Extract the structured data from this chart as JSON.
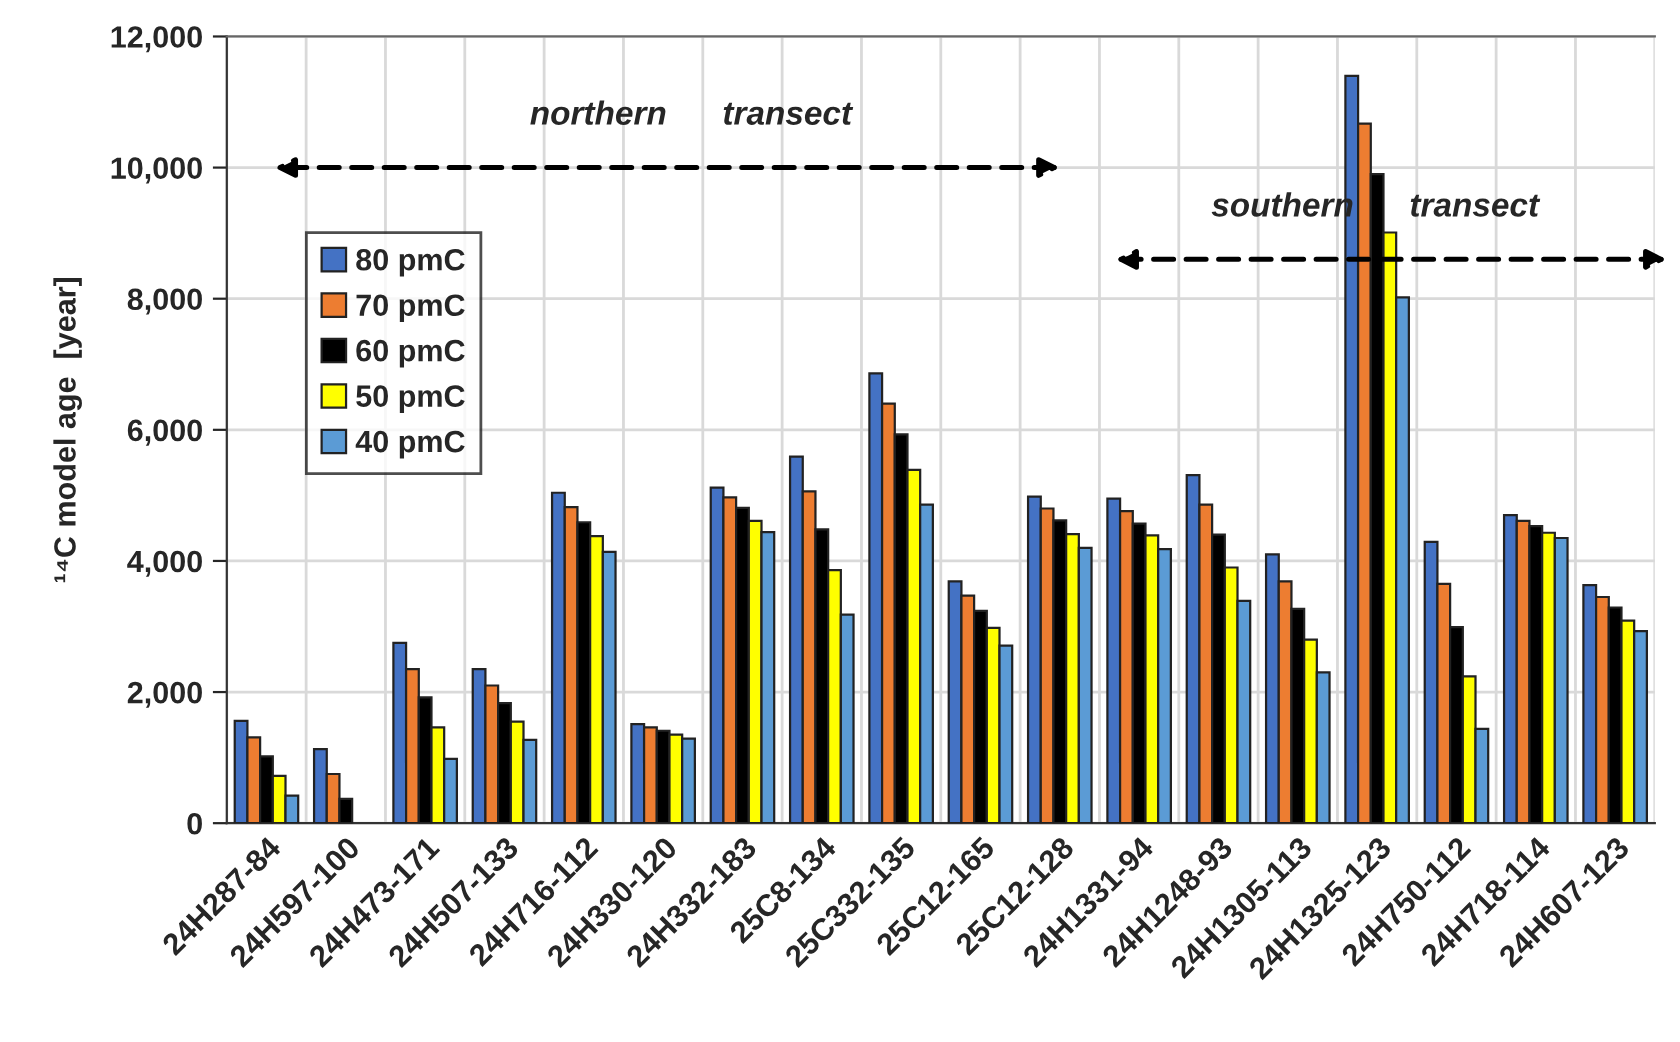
{
  "chart_data": {
    "type": "bar",
    "ylabel": "¹⁴C model age  [year]",
    "categories": [
      "24H287-84",
      "24H597-100",
      "24H473-171",
      "24H507-133",
      "24H716-112",
      "24H330-120",
      "24H332-183",
      "25C8-134",
      "25C332-135",
      "25C12-165",
      "25C12-128",
      "24H1331-94",
      "24H1248-93",
      "24H1305-113",
      "24H1325-123",
      "24H750-112",
      "24H718-114",
      "24H607-123"
    ],
    "series": [
      {
        "name": "80 pmC",
        "color": "#4472c4",
        "values": [
          1560,
          1130,
          2750,
          2350,
          5040,
          1510,
          5120,
          5590,
          6860,
          3690,
          4980,
          4950,
          5310,
          4100,
          11400,
          4290,
          4700,
          3630
        ]
      },
      {
        "name": "70 pmC",
        "color": "#ed7d31",
        "values": [
          1310,
          750,
          2350,
          2100,
          4820,
          1460,
          4970,
          5060,
          6400,
          3470,
          4800,
          4760,
          4860,
          3690,
          10670,
          3650,
          4610,
          3450
        ]
      },
      {
        "name": "60 pmC",
        "color": "#000000",
        "values": [
          1020,
          370,
          1920,
          1830,
          4590,
          1410,
          4810,
          4480,
          5930,
          3240,
          4620,
          4570,
          4400,
          3270,
          9900,
          2990,
          4530,
          3290
        ]
      },
      {
        "name": "50 pmC",
        "color": "#ffff00",
        "values": [
          720,
          null,
          1460,
          1550,
          4380,
          1350,
          4610,
          3860,
          5390,
          2980,
          4410,
          4390,
          3900,
          2800,
          9010,
          2240,
          4430,
          3090
        ]
      },
      {
        "name": "40 pmC",
        "color": "#5b9bd5",
        "values": [
          420,
          null,
          980,
          1270,
          4140,
          1290,
          4440,
          3180,
          4860,
          2710,
          4200,
          4180,
          3390,
          2300,
          8020,
          1440,
          4350,
          2930
        ]
      }
    ],
    "ylim": [
      0,
      12000
    ],
    "yticks": [
      0,
      {
        "value": 2000,
        "label": "2,000"
      },
      {
        "value": 4000,
        "label": "4,000"
      },
      {
        "value": 6000,
        "label": "6,000"
      },
      {
        "value": 8000,
        "label": "8,000"
      },
      {
        "value": 10000,
        "label": "10,000"
      },
      {
        "value": 12000,
        "label": "12,000"
      }
    ],
    "annotations": [
      "northern      transect",
      "southern      transect"
    ],
    "grid": true,
    "legend": "top left"
  }
}
